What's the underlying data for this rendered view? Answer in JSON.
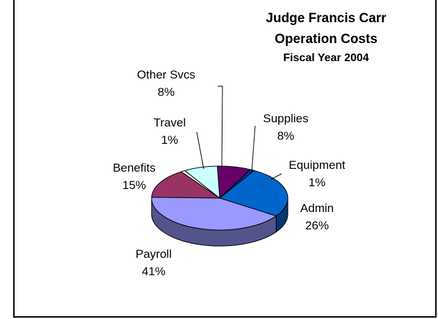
{
  "chart_data": {
    "type": "pie",
    "title": "Judge Francis Carr",
    "subtitle": "Operation Costs",
    "subtitle2": "Fiscal Year 2004",
    "slices": [
      {
        "name": "Supplies",
        "pct_label": "8%",
        "value": 8,
        "color": "#660066"
      },
      {
        "name": "Equipment",
        "pct_label": "1%",
        "value": 1,
        "color": "#003399"
      },
      {
        "name": "Admin",
        "pct_label": "26%",
        "value": 26,
        "color": "#0066cc"
      },
      {
        "name": "Payroll",
        "pct_label": "41%",
        "value": 41,
        "color": "#9999ff"
      },
      {
        "name": "Benefits",
        "pct_label": "15%",
        "value": 15,
        "color": "#993366"
      },
      {
        "name": "Travel",
        "pct_label": "1%",
        "value": 1,
        "color": "#ffffcc"
      },
      {
        "name": "Other Svcs",
        "pct_label": "8%",
        "value": 8,
        "color": "#ccffff"
      }
    ]
  }
}
